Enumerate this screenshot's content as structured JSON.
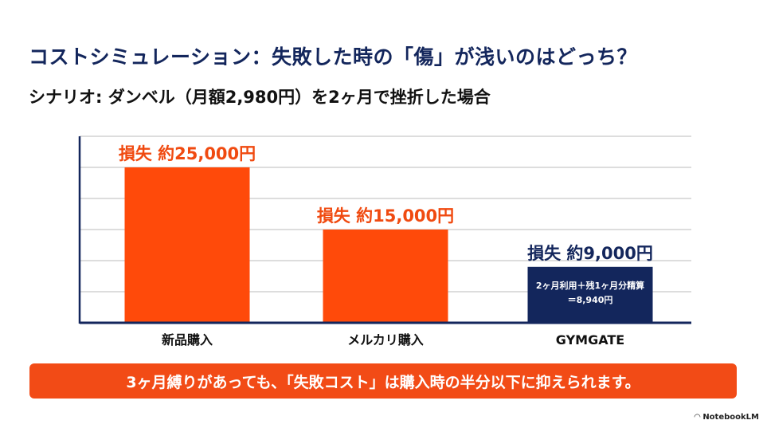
{
  "title": "コストシミュレーション：失敗した時の「傷」が浅いのはどっち？",
  "subtitle": "シナリオ: ダンベル（月額2,980円）を2ヶ月で挫折した場合",
  "banner": "3ヶ月縛りがあっても、「失敗コスト」は購入時の半分以下に抑えられます。",
  "logo": "NotebookLM",
  "chart_data": {
    "type": "bar",
    "categories": [
      "新品購入",
      "メルカリ購入",
      "GYMGATE"
    ],
    "values": [
      25000,
      15000,
      9000
    ],
    "data_labels": [
      "損失 約25,000円",
      "損失 約15,000円",
      "損失 約9,000円"
    ],
    "bar_annotation": [
      "2ヶ月利用＋残1ヶ月分精算",
      "＝8,940円"
    ],
    "colors": [
      "#ff4a0a",
      "#ff4a0a",
      "#13265c"
    ],
    "label_colors": [
      "#f04a10",
      "#f04a10",
      "#13265c"
    ],
    "ylim": [
      0,
      30000
    ],
    "grid_step": 5000,
    "grid": true,
    "xlabel": "",
    "ylabel": ""
  }
}
